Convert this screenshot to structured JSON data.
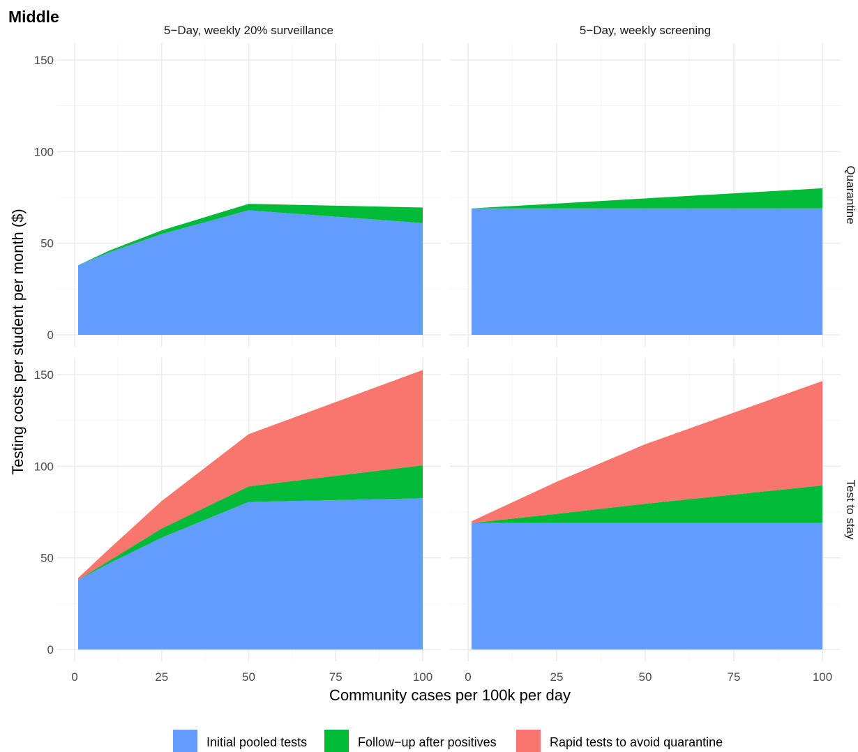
{
  "figure_title": "Middle",
  "colors": {
    "initial": "#619CFF",
    "followup": "#00BA38",
    "rapid": "#F8766D"
  },
  "chart_data": {
    "type": "area",
    "stacked": true,
    "xlabel": "Community cases per 100k per day",
    "ylabel": "Testing costs per student per month ($)",
    "xlim": [
      0,
      100
    ],
    "ylim": [
      0,
      150
    ],
    "x_ticks": [
      "0",
      "25",
      "50",
      "75",
      "100"
    ],
    "y_ticks": [
      "0",
      "50",
      "100",
      "150"
    ],
    "column_strips": [
      "5−Day, weekly 20% surveillance",
      "5−Day, weekly screening"
    ],
    "row_strips": [
      "Quarantine",
      "Test to stay"
    ],
    "legend": {
      "position": "bottom",
      "entries": [
        {
          "key": "initial",
          "label": "Initial pooled tests"
        },
        {
          "key": "followup",
          "label": "Follow−up after positives"
        },
        {
          "key": "rapid",
          "label": "Rapid tests to avoid quarantine"
        }
      ]
    },
    "panels": [
      {
        "column": "5−Day, weekly 20% surveillance",
        "row": "Quarantine",
        "x": [
          1,
          10,
          25,
          50,
          100
        ],
        "series": [
          {
            "name": "Initial pooled tests",
            "values": [
              38,
              45,
              55,
              68,
              61
            ]
          },
          {
            "name": "Follow−up after positives",
            "values": [
              0,
              1,
              2,
              3.5,
              8.5
            ]
          },
          {
            "name": "Rapid tests to avoid quarantine",
            "values": [
              0,
              0,
              0,
              0,
              0
            ]
          }
        ]
      },
      {
        "column": "5−Day, weekly screening",
        "row": "Quarantine",
        "x": [
          1,
          100
        ],
        "series": [
          {
            "name": "Initial pooled tests",
            "values": [
              69,
              69
            ]
          },
          {
            "name": "Follow−up after positives",
            "values": [
              0,
              11
            ]
          },
          {
            "name": "Rapid tests to avoid quarantine",
            "values": [
              0,
              0
            ]
          }
        ]
      },
      {
        "column": "5−Day, weekly 20% surveillance",
        "row": "Test to stay",
        "x": [
          1,
          10,
          25,
          50,
          100
        ],
        "series": [
          {
            "name": "Initial pooled tests",
            "values": [
              38,
              47,
              61,
              80.5,
              82.5
            ]
          },
          {
            "name": "Follow−up after positives",
            "values": [
              0,
              1.5,
              5,
              8.5,
              18
            ]
          },
          {
            "name": "Rapid tests to avoid quarantine",
            "values": [
              1,
              6.5,
              15,
              28.5,
              52
            ]
          }
        ]
      },
      {
        "column": "5−Day, weekly screening",
        "row": "Test to stay",
        "x": [
          1,
          25,
          50,
          100
        ],
        "series": [
          {
            "name": "Initial pooled tests",
            "values": [
              69,
              69,
              69,
              69
            ]
          },
          {
            "name": "Follow−up after positives",
            "values": [
              0,
              5,
              10.5,
              20.5
            ]
          },
          {
            "name": "Rapid tests to avoid quarantine",
            "values": [
              1,
              17.5,
              32.5,
              57
            ]
          }
        ]
      }
    ]
  }
}
